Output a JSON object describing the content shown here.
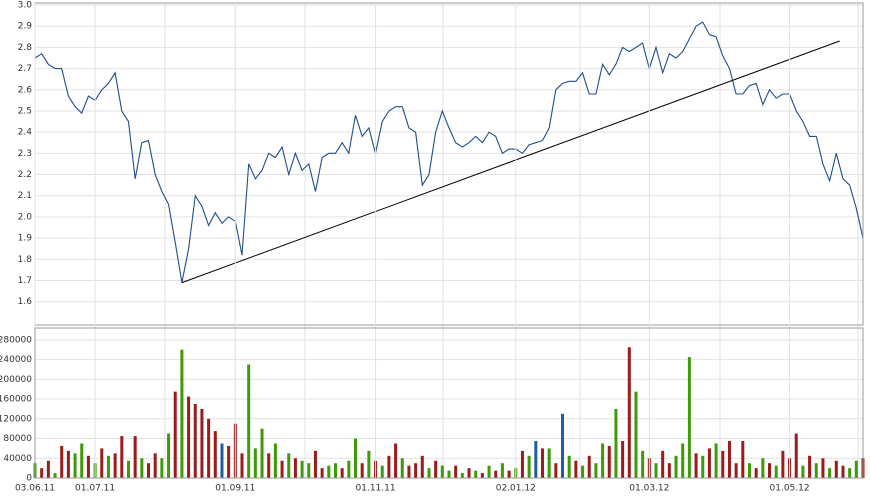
{
  "chart_data": [
    {
      "type": "line",
      "color": "#1f4e89",
      "values": [
        2.75,
        2.77,
        2.72,
        2.7,
        2.7,
        2.57,
        2.52,
        2.49,
        2.57,
        2.55,
        2.6,
        2.63,
        2.68,
        2.5,
        2.45,
        2.18,
        2.35,
        2.36,
        2.2,
        2.12,
        2.06,
        1.88,
        1.69,
        1.85,
        2.1,
        2.05,
        1.96,
        2.02,
        1.97,
        2.0,
        1.98,
        1.82,
        2.25,
        2.18,
        2.22,
        2.3,
        2.28,
        2.33,
        2.2,
        2.3,
        2.22,
        2.25,
        2.12,
        2.28,
        2.3,
        2.3,
        2.35,
        2.3,
        2.48,
        2.38,
        2.42,
        2.3,
        2.45,
        2.5,
        2.52,
        2.52,
        2.42,
        2.4,
        2.15,
        2.2,
        2.4,
        2.5,
        2.42,
        2.35,
        2.33,
        2.35,
        2.38,
        2.35,
        2.4,
        2.38,
        2.3,
        2.32,
        2.32,
        2.3,
        2.34,
        2.35,
        2.36,
        2.42,
        2.6,
        2.63,
        2.64,
        2.64,
        2.68,
        2.58,
        2.58,
        2.72,
        2.67,
        2.72,
        2.8,
        2.78,
        2.8,
        2.82,
        2.7,
        2.8,
        2.68,
        2.77,
        2.75,
        2.78,
        2.84,
        2.9,
        2.92,
        2.86,
        2.85,
        2.76,
        2.7,
        2.58,
        2.58,
        2.62,
        2.63,
        2.53,
        2.6,
        2.56,
        2.58,
        2.58,
        2.5,
        2.45,
        2.38,
        2.38,
        2.25,
        2.17,
        2.3,
        2.18,
        2.15,
        2.04,
        1.9
      ],
      "trendline": {
        "x": [
          22,
          120.5
        ],
        "values": [
          1.69,
          2.83
        ],
        "color": "#000000"
      },
      "ylim": [
        1.49,
        3.0
      ],
      "yticks": [
        1.6,
        1.7,
        1.8,
        1.9,
        {
          "value": 2,
          "label": "2.0"
        },
        2.1,
        2.2,
        2.3,
        2.4,
        2.5,
        2.6,
        2.7,
        2.8,
        2.9,
        {
          "value": 3,
          "label": "3.0"
        }
      ],
      "grid": true
    },
    {
      "type": "bar",
      "categories": [
        "03.06.11",
        null,
        null,
        null,
        null,
        null,
        null,
        null,
        null,
        "01.07.11",
        null,
        null,
        null,
        null,
        null,
        null,
        null,
        null,
        null,
        null,
        null,
        null,
        null,
        null,
        null,
        null,
        null,
        null,
        null,
        null,
        "01.09.11",
        null,
        null,
        null,
        null,
        null,
        null,
        null,
        null,
        null,
        null,
        null,
        null,
        null,
        null,
        null,
        null,
        null,
        null,
        null,
        null,
        "01.11.11",
        null,
        null,
        null,
        null,
        null,
        null,
        null,
        null,
        null,
        null,
        null,
        null,
        null,
        null,
        null,
        null,
        null,
        null,
        null,
        null,
        "02.01.12",
        null,
        null,
        null,
        null,
        null,
        null,
        null,
        null,
        null,
        null,
        null,
        null,
        null,
        null,
        null,
        null,
        null,
        null,
        null,
        "01.03.12",
        null,
        null,
        null,
        null,
        null,
        null,
        null,
        null,
        null,
        null,
        null,
        null,
        null,
        null,
        null,
        null,
        null,
        null,
        null,
        null,
        "01.05.12",
        null,
        null,
        null,
        null,
        null,
        null,
        null,
        null,
        null,
        null,
        null
      ],
      "values": [
        30000,
        20000,
        35000,
        10000,
        65000,
        55000,
        50000,
        70000,
        45000,
        30000,
        60000,
        45000,
        50000,
        85000,
        35000,
        85000,
        40000,
        30000,
        50000,
        40000,
        90000,
        175000,
        260000,
        165000,
        150000,
        140000,
        120000,
        95000,
        70000,
        65000,
        110000,
        50000,
        230000,
        60000,
        100000,
        50000,
        70000,
        35000,
        50000,
        40000,
        35000,
        30000,
        55000,
        20000,
        25000,
        30000,
        20000,
        35000,
        80000,
        30000,
        55000,
        35000,
        25000,
        45000,
        70000,
        40000,
        25000,
        30000,
        45000,
        20000,
        35000,
        25000,
        15000,
        25000,
        10000,
        20000,
        15000,
        10000,
        25000,
        15000,
        30000,
        15000,
        20000,
        55000,
        45000,
        75000,
        60000,
        60000,
        30000,
        130000,
        45000,
        35000,
        25000,
        45000,
        30000,
        70000,
        65000,
        140000,
        75000,
        265000,
        175000,
        55000,
        40000,
        30000,
        55000,
        30000,
        45000,
        70000,
        245000,
        50000,
        45000,
        60000,
        70000,
        55000,
        75000,
        30000,
        75000,
        30000,
        20000,
        40000,
        30000,
        25000,
        55000,
        40000,
        90000,
        25000,
        45000,
        30000,
        40000,
        20000,
        35000,
        25000,
        20000,
        35000,
        40000
      ],
      "bar_colors": [
        "#3f9a0a",
        "#9b1c1c",
        "#9b1c1c",
        "#3f9a0a",
        "#9b1c1c",
        "#9b1c1c",
        "#3f9a0a",
        "#3f9a0a",
        "#9b1c1c",
        "#3f9a0a",
        "#9b1c1c",
        "#3f9a0a",
        "#9b1c1c",
        "#9b1c1c",
        "#3f9a0a",
        "#9b1c1c",
        "#3f9a0a",
        "#9b1c1c",
        "#9b1c1c",
        "#3f9a0a",
        "#3f9a0a",
        "#9b1c1c",
        "#3f9a0a",
        "#9b1c1c",
        "#9b1c1c",
        "#9b1c1c",
        "#9b1c1c",
        "#9b1c1c",
        "#1f5e9a",
        "#9b1c1c",
        "#9b1c1c",
        "#9b1c1c",
        "#3f9a0a",
        "#3f9a0a",
        "#3f9a0a",
        "#9b1c1c",
        "#3f9a0a",
        "#9b1c1c",
        "#3f9a0a",
        "#9b1c1c",
        "#3f9a0a",
        "#3f9a0a",
        "#9b1c1c",
        "#9b1c1c",
        "#3f9a0a",
        "#3f9a0a",
        "#9b1c1c",
        "#3f9a0a",
        "#3f9a0a",
        "#9b1c1c",
        "#3f9a0a",
        "#9b1c1c",
        "#3f9a0a",
        "#9b1c1c",
        "#9b1c1c",
        "#3f9a0a",
        "#9b1c1c",
        "#9b1c1c",
        "#9b1c1c",
        "#3f9a0a",
        "#9b1c1c",
        "#3f9a0a",
        "#3f9a0a",
        "#9b1c1c",
        "#3f9a0a",
        "#9b1c1c",
        "#3f9a0a",
        "#9b1c1c",
        "#3f9a0a",
        "#9b1c1c",
        "#3f9a0a",
        "#9b1c1c",
        "#3f9a0a",
        "#9b1c1c",
        "#3f9a0a",
        "#1f5e9a",
        "#9b1c1c",
        "#3f9a0a",
        "#9b1c1c",
        "#1f5e9a",
        "#3f9a0a",
        "#9b1c1c",
        "#3f9a0a",
        "#9b1c1c",
        "#3f9a0a",
        "#3f9a0a",
        "#9b1c1c",
        "#3f9a0a",
        "#9b1c1c",
        "#9b1c1c",
        "#3f9a0a",
        "#3f9a0a",
        "#9b1c1c",
        "#3f9a0a",
        "#9b1c1c",
        "#9b1c1c",
        "#3f9a0a",
        "#3f9a0a",
        "#3f9a0a",
        "#9b1c1c",
        "#3f9a0a",
        "#9b1c1c",
        "#3f9a0a",
        "#9b1c1c",
        "#9b1c1c",
        "#9b1c1c",
        "#9b1c1c",
        "#3f9a0a",
        "#9b1c1c",
        "#3f9a0a",
        "#9b1c1c",
        "#3f9a0a",
        "#9b1c1c",
        "#9b1c1c",
        "#9b1c1c",
        "#3f9a0a",
        "#9b1c1c",
        "#3f9a0a",
        "#9b1c1c",
        "#3f9a0a",
        "#9b1c1c",
        "#9b1c1c",
        "#3f9a0a",
        "#3f9a0a",
        "#9b1c1c"
      ],
      "ylim": [
        0,
        300000
      ],
      "yticks": [
        0,
        40000,
        80000,
        120000,
        160000,
        200000,
        240000,
        280000
      ],
      "grid": true
    }
  ]
}
